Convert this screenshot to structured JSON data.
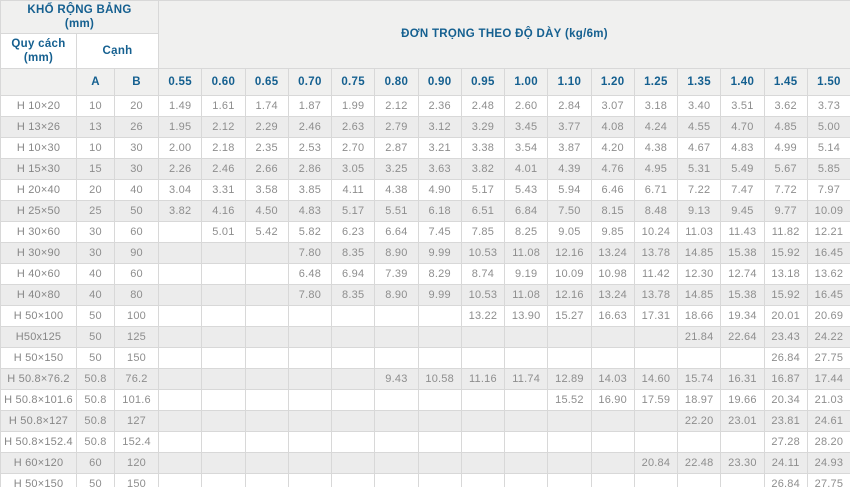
{
  "table": {
    "header": {
      "width_group_line1": "KHỔ RỘNG BẢNG",
      "width_group_line2": "(mm)",
      "unit_weight_title": "ĐƠN TRỌNG THEO ĐỘ DÀY (kg/6m)",
      "spec_label_line1": "Quy cách",
      "spec_label_line2": "(mm)",
      "side_label": "Cạnh",
      "side_a": "A",
      "side_b": "B",
      "thickness_columns": [
        "0.55",
        "0.60",
        "0.65",
        "0.70",
        "0.75",
        "0.80",
        "0.90",
        "0.95",
        "1.00",
        "1.10",
        "1.20",
        "1.25",
        "1.35",
        "1.40",
        "1.45",
        "1.50"
      ]
    },
    "rows": [
      {
        "label": "H 10×20",
        "a": "10",
        "b": "20",
        "values": [
          "1.49",
          "1.61",
          "1.74",
          "1.87",
          "1.99",
          "2.12",
          "2.36",
          "2.48",
          "2.60",
          "2.84",
          "3.07",
          "3.18",
          "3.40",
          "3.51",
          "3.62",
          "3.73"
        ]
      },
      {
        "label": "H 13×26",
        "a": "13",
        "b": "26",
        "values": [
          "1.95",
          "2.12",
          "2.29",
          "2.46",
          "2.63",
          "2.79",
          "3.12",
          "3.29",
          "3.45",
          "3.77",
          "4.08",
          "4.24",
          "4.55",
          "4.70",
          "4.85",
          "5.00"
        ]
      },
      {
        "label": "H 10×30",
        "a": "10",
        "b": "30",
        "values": [
          "2.00",
          "2.18",
          "2.35",
          "2.53",
          "2.70",
          "2.87",
          "3.21",
          "3.38",
          "3.54",
          "3.87",
          "4.20",
          "4.38",
          "4.67",
          "4.83",
          "4.99",
          "5.14"
        ]
      },
      {
        "label": "H 15×30",
        "a": "15",
        "b": "30",
        "values": [
          "2.26",
          "2.46",
          "2.66",
          "2.86",
          "3.05",
          "3.25",
          "3.63",
          "3.82",
          "4.01",
          "4.39",
          "4.76",
          "4.95",
          "5.31",
          "5.49",
          "5.67",
          "5.85"
        ]
      },
      {
        "label": "H 20×40",
        "a": "20",
        "b": "40",
        "values": [
          "3.04",
          "3.31",
          "3.58",
          "3.85",
          "4.11",
          "4.38",
          "4.90",
          "5.17",
          "5.43",
          "5.94",
          "6.46",
          "6.71",
          "7.22",
          "7.47",
          "7.72",
          "7.97"
        ]
      },
      {
        "label": "H 25×50",
        "a": "25",
        "b": "50",
        "values": [
          "3.82",
          "4.16",
          "4.50",
          "4.83",
          "5.17",
          "5.51",
          "6.18",
          "6.51",
          "6.84",
          "7.50",
          "8.15",
          "8.48",
          "9.13",
          "9.45",
          "9.77",
          "10.09"
        ]
      },
      {
        "label": "H 30×60",
        "a": "30",
        "b": "60",
        "values": [
          "",
          "5.01",
          "5.42",
          "5.82",
          "6.23",
          "6.64",
          "7.45",
          "7.85",
          "8.25",
          "9.05",
          "9.85",
          "10.24",
          "11.03",
          "11.43",
          "11.82",
          "12.21"
        ]
      },
      {
        "label": "H 30×90",
        "a": "30",
        "b": "90",
        "values": [
          "",
          "",
          "",
          "7.80",
          "8.35",
          "8.90",
          "9.99",
          "10.53",
          "11.08",
          "12.16",
          "13.24",
          "13.78",
          "14.85",
          "15.38",
          "15.92",
          "16.45"
        ]
      },
      {
        "label": "H 40×60",
        "a": "40",
        "b": "60",
        "values": [
          "",
          "",
          "",
          "6.48",
          "6.94",
          "7.39",
          "8.29",
          "8.74",
          "9.19",
          "10.09",
          "10.98",
          "11.42",
          "12.30",
          "12.74",
          "13.18",
          "13.62"
        ]
      },
      {
        "label": "H 40×80",
        "a": "40",
        "b": "80",
        "values": [
          "",
          "",
          "",
          "7.80",
          "8.35",
          "8.90",
          "9.99",
          "10.53",
          "11.08",
          "12.16",
          "13.24",
          "13.78",
          "14.85",
          "15.38",
          "15.92",
          "16.45"
        ]
      },
      {
        "label": "H 50×100",
        "a": "50",
        "b": "100",
        "values": [
          "",
          "",
          "",
          "",
          "",
          "",
          "",
          "13.22",
          "13.90",
          "15.27",
          "16.63",
          "17.31",
          "18.66",
          "19.34",
          "20.01",
          "20.69"
        ]
      },
      {
        "label": "H50x125",
        "a": "50",
        "b": "125",
        "values": [
          "",
          "",
          "",
          "",
          "",
          "",
          "",
          "",
          "",
          "",
          "",
          "",
          "21.84",
          "22.64",
          "23.43",
          "24.22"
        ]
      },
      {
        "label": "H 50×150",
        "a": "50",
        "b": "150",
        "values": [
          "",
          "",
          "",
          "",
          "",
          "",
          "",
          "",
          "",
          "",
          "",
          "",
          "",
          "",
          "26.84",
          "27.75"
        ]
      },
      {
        "label": "H 50.8×76.2",
        "a": "50.8",
        "b": "76.2",
        "values": [
          "",
          "",
          "",
          "",
          "",
          "9.43",
          "10.58",
          "11.16",
          "11.74",
          "12.89",
          "14.03",
          "14.60",
          "15.74",
          "16.31",
          "16.87",
          "17.44"
        ]
      },
      {
        "label": "H 50.8×101.6",
        "a": "50.8",
        "b": "101.6",
        "values": [
          "",
          "",
          "",
          "",
          "",
          "",
          "",
          "",
          "",
          "15.52",
          "16.90",
          "17.59",
          "18.97",
          "19.66",
          "20.34",
          "21.03"
        ]
      },
      {
        "label": "H 50.8×127",
        "a": "50.8",
        "b": "127",
        "values": [
          "",
          "",
          "",
          "",
          "",
          "",
          "",
          "",
          "",
          "",
          "",
          "",
          "22.20",
          "23.01",
          "23.81",
          "24.61"
        ]
      },
      {
        "label": "H 50.8×152.4",
        "a": "50.8",
        "b": "152.4",
        "values": [
          "",
          "",
          "",
          "",
          "",
          "",
          "",
          "",
          "",
          "",
          "",
          "",
          "",
          "",
          "27.28",
          "28.20"
        ]
      },
      {
        "label": "H 60×120",
        "a": "60",
        "b": "120",
        "values": [
          "",
          "",
          "",
          "",
          "",
          "",
          "",
          "",
          "",
          "",
          "",
          "20.84",
          "22.48",
          "23.30",
          "24.11",
          "24.93"
        ]
      },
      {
        "label": "H 50×150",
        "a": "50",
        "b": "150",
        "values": [
          "",
          "",
          "",
          "",
          "",
          "",
          "",
          "",
          "",
          "",
          "",
          "",
          "",
          "",
          "26.84",
          "27.75"
        ]
      }
    ]
  },
  "colors": {
    "header_text": "#156090",
    "header_bg": "#f0f0ef",
    "body_text": "#8e8e8e",
    "stripe": "#ececec",
    "border": "#d8d8d8"
  }
}
